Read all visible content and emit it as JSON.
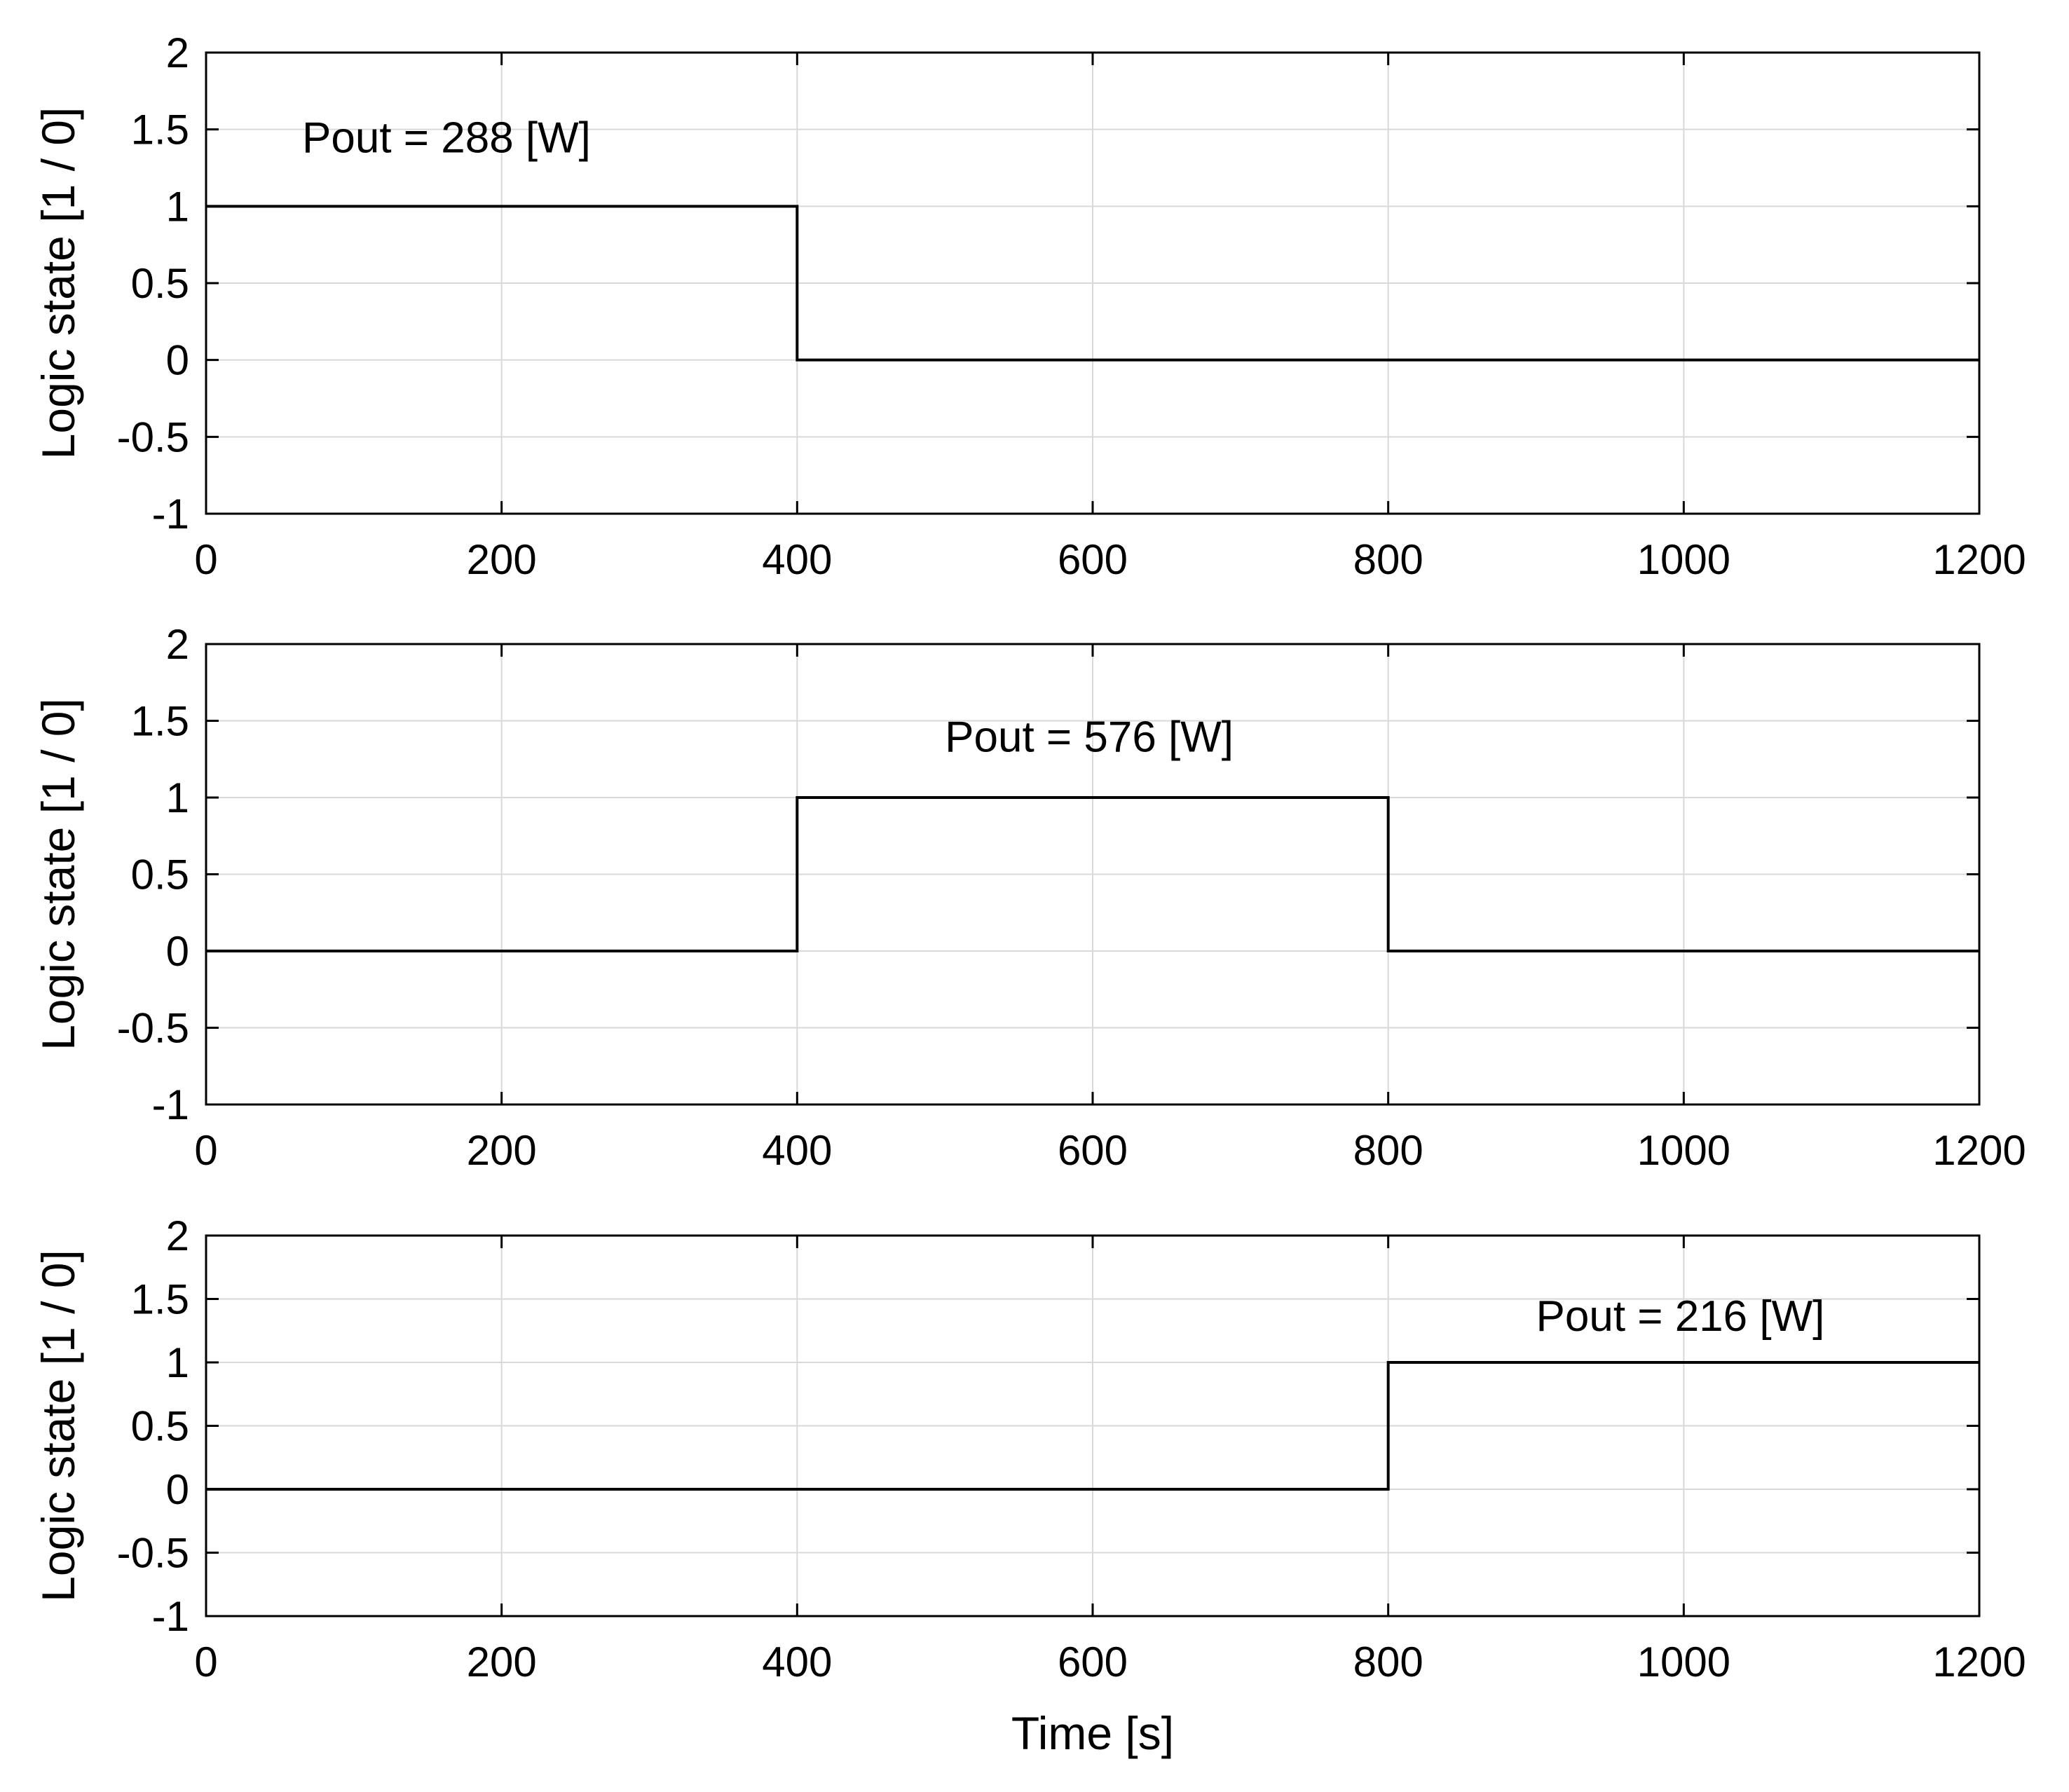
{
  "colors": {
    "background": "#ffffff",
    "line": "#000000",
    "grid": "#d9d9d9",
    "axes": "#000000"
  },
  "chart_data": [
    {
      "type": "line",
      "title": "",
      "xlabel": "",
      "ylabel": "Logic state [1 / 0]",
      "xlim": [
        0,
        1200
      ],
      "ylim": [
        -1,
        2
      ],
      "xticks": [
        0,
        200,
        400,
        600,
        800,
        1000,
        1200
      ],
      "xtick_labels": [
        "0",
        "200",
        "400",
        "600",
        "800",
        "1000",
        "1200"
      ],
      "yticks": [
        -1,
        -0.5,
        0,
        0.5,
        1,
        1.5,
        2
      ],
      "ytick_labels": [
        "-1",
        "-0.5",
        "0",
        "0.5",
        "1",
        "1.5",
        "2"
      ],
      "grid": true,
      "legend": "none",
      "series": [
        {
          "x": [
            0,
            400,
            400,
            1200
          ],
          "y": [
            1,
            1,
            0,
            0
          ]
        }
      ],
      "annotations": [
        {
          "text": "Pout = 288 [W]",
          "x": 65,
          "y": 1.35
        }
      ]
    },
    {
      "type": "line",
      "title": "",
      "xlabel": "",
      "ylabel": "Logic state [1 / 0]",
      "xlim": [
        0,
        1200
      ],
      "ylim": [
        -1,
        2
      ],
      "xticks": [
        0,
        200,
        400,
        600,
        800,
        1000,
        1200
      ],
      "xtick_labels": [
        "0",
        "200",
        "400",
        "600",
        "800",
        "1000",
        "1200"
      ],
      "yticks": [
        -1,
        -0.5,
        0,
        0.5,
        1,
        1.5,
        2
      ],
      "ytick_labels": [
        "-1",
        "-0.5",
        "0",
        "0.5",
        "1",
        "1.5",
        "2"
      ],
      "grid": true,
      "legend": "none",
      "series": [
        {
          "x": [
            0,
            400,
            400,
            800,
            800,
            1200
          ],
          "y": [
            0,
            0,
            1,
            1,
            0,
            0
          ]
        }
      ],
      "annotations": [
        {
          "text": "Pout = 576 [W]",
          "x": 500,
          "y": 1.3
        }
      ]
    },
    {
      "type": "line",
      "title": "",
      "xlabel": "Time [s]",
      "ylabel": "Logic state [1 / 0]",
      "xlim": [
        0,
        1200
      ],
      "ylim": [
        -1,
        2
      ],
      "xticks": [
        0,
        200,
        400,
        600,
        800,
        1000,
        1200
      ],
      "xtick_labels": [
        "0",
        "200",
        "400",
        "600",
        "800",
        "1000",
        "1200"
      ],
      "yticks": [
        -1,
        -0.5,
        0,
        0.5,
        1,
        1.5,
        2
      ],
      "ytick_labels": [
        "-1",
        "-0.5",
        "0",
        "0.5",
        "1",
        "1.5",
        "2"
      ],
      "grid": true,
      "legend": "none",
      "series": [
        {
          "x": [
            0,
            800,
            800,
            1200
          ],
          "y": [
            0,
            0,
            1,
            1
          ]
        }
      ],
      "annotations": [
        {
          "text": "Pout = 216 [W]",
          "x": 900,
          "y": 1.25
        }
      ]
    }
  ]
}
